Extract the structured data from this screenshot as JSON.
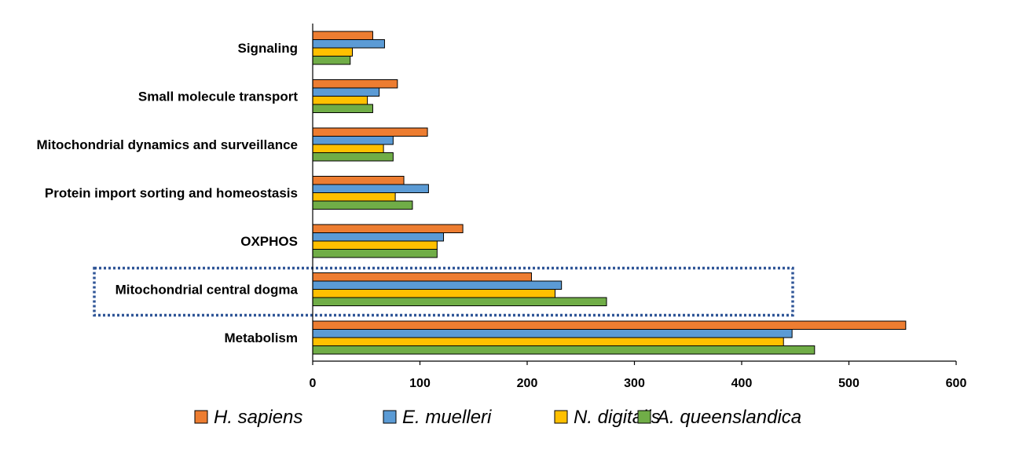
{
  "chart_data": {
    "type": "bar",
    "orientation": "horizontal",
    "categories": [
      "Signaling",
      "Small molecule transport",
      "Mitochondrial dynamics and surveillance",
      "Protein import sorting and homeostasis",
      "OXPHOS",
      "Mitochondrial central dogma",
      "Metabolism"
    ],
    "series": [
      {
        "name": "H. sapiens",
        "color": "#ED7D31",
        "values": [
          56,
          79,
          107,
          85,
          140,
          204,
          553
        ]
      },
      {
        "name": "E. muelleri",
        "color": "#5B9BD5",
        "values": [
          67,
          62,
          75,
          108,
          122,
          232,
          447
        ]
      },
      {
        "name": "N. digitalis",
        "color": "#FFC000",
        "values": [
          37,
          51,
          66,
          77,
          116,
          226,
          439
        ]
      },
      {
        "name": "A. queenslandica",
        "color": "#70AD47",
        "values": [
          35,
          56,
          75,
          93,
          116,
          274,
          468
        ]
      }
    ],
    "xlim": [
      0,
      600
    ],
    "xticks": [
      "0",
      "100",
      "200",
      "300",
      "400",
      "500",
      "600"
    ],
    "grid": false,
    "legend_position": "bottom",
    "highlighted_category": "Mitochondrial central dogma",
    "highlight_style": "dotted-box",
    "highlight_color": "#2F5597"
  }
}
